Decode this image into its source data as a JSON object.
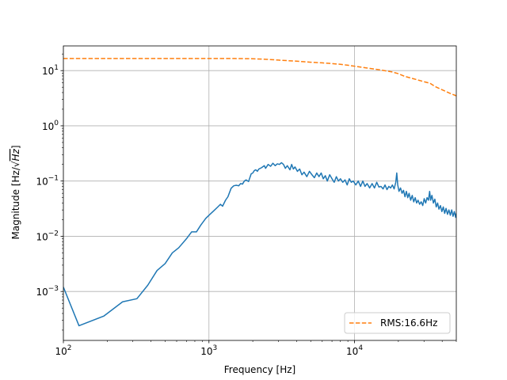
{
  "chart_data": {
    "type": "line",
    "title": "",
    "xlabel": "Frequency [Hz]",
    "ylabel_prefix": "Magnitude [Hz/",
    "ylabel_radical": "√",
    "ylabel_radicand": "Hz",
    "ylabel_suffix": "]",
    "xscale": "log",
    "yscale": "log",
    "xlim": [
      100,
      50000
    ],
    "ylim": [
      0.00013,
      28
    ],
    "grid": true,
    "legend_position": "lower right",
    "x_ticks": [
      {
        "value": 100,
        "base": "10",
        "exp": "2"
      },
      {
        "value": 1000,
        "base": "10",
        "exp": "3"
      },
      {
        "value": 10000,
        "base": "10",
        "exp": "4"
      }
    ],
    "y_ticks": [
      {
        "value": 0.001,
        "base": "10",
        "exp": "−3"
      },
      {
        "value": 0.01,
        "base": "10",
        "exp": "−2"
      },
      {
        "value": 0.1,
        "base": "10",
        "exp": "−1"
      },
      {
        "value": 1,
        "base": "10",
        "exp": "0"
      },
      {
        "value": 10,
        "base": "10",
        "exp": "1"
      }
    ],
    "series": [
      {
        "name": "",
        "color": "#1f77b4",
        "style": "solid",
        "points": [
          [
            100,
            0.0012
          ],
          [
            128,
            0.00024
          ],
          [
            190,
            0.00036
          ],
          [
            255,
            0.00065
          ],
          [
            320,
            0.00074
          ],
          [
            380,
            0.0013
          ],
          [
            440,
            0.0024
          ],
          [
            500,
            0.0032
          ],
          [
            560,
            0.005
          ],
          [
            620,
            0.0062
          ],
          [
            700,
            0.009
          ],
          [
            760,
            0.012
          ],
          [
            820,
            0.012
          ],
          [
            880,
            0.016
          ],
          [
            950,
            0.021
          ],
          [
            1000,
            0.024
          ],
          [
            1080,
            0.029
          ],
          [
            1150,
            0.034
          ],
          [
            1200,
            0.038
          ],
          [
            1240,
            0.035
          ],
          [
            1300,
            0.045
          ],
          [
            1350,
            0.052
          ],
          [
            1420,
            0.074
          ],
          [
            1480,
            0.082
          ],
          [
            1540,
            0.084
          ],
          [
            1600,
            0.082
          ],
          [
            1650,
            0.09
          ],
          [
            1700,
            0.088
          ],
          [
            1750,
            0.1
          ],
          [
            1800,
            0.105
          ],
          [
            1870,
            0.098
          ],
          [
            1950,
            0.135
          ],
          [
            2000,
            0.14
          ],
          [
            2050,
            0.155
          ],
          [
            2100,
            0.16
          ],
          [
            2150,
            0.15
          ],
          [
            2200,
            0.165
          ],
          [
            2300,
            0.175
          ],
          [
            2400,
            0.19
          ],
          [
            2450,
            0.17
          ],
          [
            2550,
            0.2
          ],
          [
            2650,
            0.185
          ],
          [
            2750,
            0.21
          ],
          [
            2850,
            0.19
          ],
          [
            2950,
            0.205
          ],
          [
            3050,
            0.2
          ],
          [
            3150,
            0.215
          ],
          [
            3250,
            0.2
          ],
          [
            3350,
            0.17
          ],
          [
            3450,
            0.19
          ],
          [
            3600,
            0.16
          ],
          [
            3700,
            0.2
          ],
          [
            3800,
            0.165
          ],
          [
            3900,
            0.18
          ],
          [
            4050,
            0.15
          ],
          [
            4200,
            0.165
          ],
          [
            4350,
            0.13
          ],
          [
            4500,
            0.145
          ],
          [
            4700,
            0.12
          ],
          [
            4900,
            0.15
          ],
          [
            5100,
            0.13
          ],
          [
            5300,
            0.115
          ],
          [
            5500,
            0.14
          ],
          [
            5700,
            0.12
          ],
          [
            5900,
            0.14
          ],
          [
            6100,
            0.11
          ],
          [
            6300,
            0.125
          ],
          [
            6500,
            0.1
          ],
          [
            6750,
            0.13
          ],
          [
            7000,
            0.11
          ],
          [
            7250,
            0.095
          ],
          [
            7500,
            0.12
          ],
          [
            7750,
            0.1
          ],
          [
            8000,
            0.11
          ],
          [
            8300,
            0.095
          ],
          [
            8600,
            0.105
          ],
          [
            8900,
            0.085
          ],
          [
            9200,
            0.11
          ],
          [
            9500,
            0.095
          ],
          [
            9800,
            0.1
          ],
          [
            10200,
            0.085
          ],
          [
            10600,
            0.1
          ],
          [
            11000,
            0.08
          ],
          [
            11400,
            0.1
          ],
          [
            11800,
            0.08
          ],
          [
            12200,
            0.09
          ],
          [
            12700,
            0.075
          ],
          [
            13200,
            0.09
          ],
          [
            13700,
            0.075
          ],
          [
            14200,
            0.095
          ],
          [
            14700,
            0.078
          ],
          [
            15200,
            0.08
          ],
          [
            15700,
            0.072
          ],
          [
            16200,
            0.085
          ],
          [
            16700,
            0.07
          ],
          [
            17200,
            0.08
          ],
          [
            17700,
            0.075
          ],
          [
            18200,
            0.085
          ],
          [
            18700,
            0.072
          ],
          [
            19200,
            0.095
          ],
          [
            19500,
            0.14
          ],
          [
            19800,
            0.085
          ],
          [
            20200,
            0.065
          ],
          [
            20700,
            0.075
          ],
          [
            21200,
            0.06
          ],
          [
            21700,
            0.068
          ],
          [
            22200,
            0.052
          ],
          [
            22700,
            0.065
          ],
          [
            23200,
            0.05
          ],
          [
            23700,
            0.06
          ],
          [
            24300,
            0.045
          ],
          [
            24900,
            0.055
          ],
          [
            25500,
            0.042
          ],
          [
            26100,
            0.05
          ],
          [
            26700,
            0.04
          ],
          [
            27300,
            0.045
          ],
          [
            28000,
            0.038
          ],
          [
            28700,
            0.042
          ],
          [
            29400,
            0.036
          ],
          [
            30100,
            0.048
          ],
          [
            30800,
            0.04
          ],
          [
            31500,
            0.05
          ],
          [
            32200,
            0.045
          ],
          [
            32800,
            0.065
          ],
          [
            33300,
            0.045
          ],
          [
            34000,
            0.055
          ],
          [
            34800,
            0.04
          ],
          [
            35600,
            0.047
          ],
          [
            36400,
            0.034
          ],
          [
            37200,
            0.04
          ],
          [
            38000,
            0.031
          ],
          [
            38900,
            0.036
          ],
          [
            39800,
            0.028
          ],
          [
            40700,
            0.034
          ],
          [
            41600,
            0.026
          ],
          [
            42500,
            0.032
          ],
          [
            43500,
            0.025
          ],
          [
            44500,
            0.03
          ],
          [
            45500,
            0.024
          ],
          [
            46500,
            0.03
          ],
          [
            47500,
            0.023
          ],
          [
            48500,
            0.028
          ],
          [
            49500,
            0.022
          ],
          [
            50000,
            0.026
          ]
        ]
      },
      {
        "name": "RMS:16.6Hz",
        "color": "#ff7f0e",
        "style": "dashed",
        "points": [
          [
            100,
            16.6
          ],
          [
            500,
            16.6
          ],
          [
            1000,
            16.6
          ],
          [
            1500,
            16.55
          ],
          [
            2000,
            16.4
          ],
          [
            2500,
            16.0
          ],
          [
            3000,
            15.5
          ],
          [
            4000,
            14.8
          ],
          [
            5000,
            14.2
          ],
          [
            6000,
            13.8
          ],
          [
            7000,
            13.4
          ],
          [
            8000,
            13.0
          ],
          [
            9000,
            12.5
          ],
          [
            10000,
            12.0
          ],
          [
            12000,
            11.2
          ],
          [
            15000,
            10.3
          ],
          [
            18000,
            9.5
          ],
          [
            20000,
            8.8
          ],
          [
            22000,
            7.9
          ],
          [
            25000,
            7.2
          ],
          [
            30000,
            6.3
          ],
          [
            33000,
            5.9
          ],
          [
            36000,
            5.1
          ],
          [
            40000,
            4.5
          ],
          [
            45000,
            3.9
          ],
          [
            50000,
            3.5
          ]
        ]
      }
    ]
  }
}
